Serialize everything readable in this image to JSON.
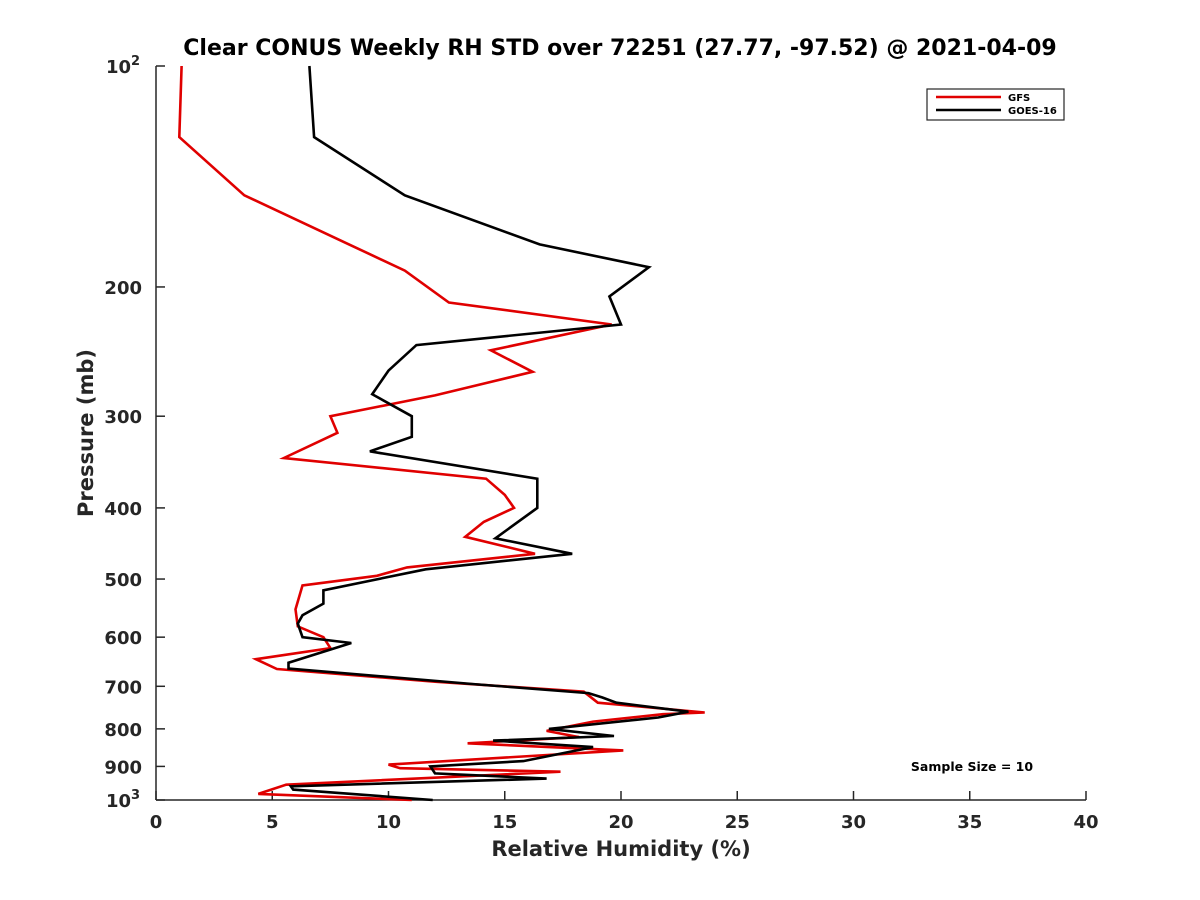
{
  "chart_data": {
    "type": "line",
    "title": "Clear CONUS Weekly RH STD over 72251 (27.77, -97.52) @ 2021-04-09",
    "xlabel": "Relative Humidity (%)",
    "ylabel": "Pressure (mb)",
    "xlim": [
      0,
      40
    ],
    "ylim": [
      100,
      1000
    ],
    "yscale": "log",
    "y_reversed": true,
    "x_ticks": [
      "0",
      "5",
      "10",
      "15",
      "20",
      "25",
      "30",
      "35",
      "40"
    ],
    "y_ticks": [
      {
        "value": 100,
        "label": "10",
        "sup": "2"
      },
      {
        "value": 200,
        "label": "200",
        "sup": ""
      },
      {
        "value": 300,
        "label": "300",
        "sup": ""
      },
      {
        "value": 400,
        "label": "400",
        "sup": ""
      },
      {
        "value": 500,
        "label": "500",
        "sup": ""
      },
      {
        "value": 600,
        "label": "600",
        "sup": ""
      },
      {
        "value": 700,
        "label": "700",
        "sup": ""
      },
      {
        "value": 800,
        "label": "800",
        "sup": ""
      },
      {
        "value": 900,
        "label": "900",
        "sup": ""
      },
      {
        "value": 1000,
        "label": "10",
        "sup": "3"
      }
    ],
    "grid": false,
    "legend_position": "top-right",
    "annotation": "Sample Size = 10",
    "series": [
      {
        "name": "GFS",
        "color": "#e00000",
        "points": [
          [
            1.1,
            100
          ],
          [
            1.0,
            125
          ],
          [
            3.8,
            150
          ],
          [
            8.3,
            175
          ],
          [
            10.7,
            190
          ],
          [
            12.6,
            210
          ],
          [
            19.6,
            225
          ],
          [
            14.4,
            244
          ],
          [
            16.2,
            261
          ],
          [
            12.0,
            281
          ],
          [
            7.5,
            300
          ],
          [
            7.8,
            316
          ],
          [
            5.5,
            342
          ],
          [
            14.2,
            365
          ],
          [
            15.0,
            384
          ],
          [
            15.4,
            400
          ],
          [
            14.1,
            418
          ],
          [
            13.3,
            438
          ],
          [
            16.3,
            462
          ],
          [
            10.8,
            482
          ],
          [
            9.5,
            495
          ],
          [
            6.3,
            510
          ],
          [
            6.0,
            550
          ],
          [
            6.1,
            580
          ],
          [
            7.2,
            600
          ],
          [
            7.5,
            621
          ],
          [
            4.3,
            643
          ],
          [
            5.2,
            663
          ],
          [
            12.0,
            690
          ],
          [
            18.4,
            712
          ],
          [
            19.0,
            737
          ],
          [
            23.6,
            760
          ],
          [
            21.8,
            764
          ],
          [
            18.8,
            782
          ],
          [
            16.8,
            805
          ],
          [
            18.2,
            821
          ],
          [
            13.4,
            837
          ],
          [
            20.1,
            856
          ],
          [
            10.0,
            895
          ],
          [
            10.5,
            905
          ],
          [
            17.4,
            915
          ],
          [
            5.6,
            953
          ],
          [
            4.4,
            981
          ],
          [
            11.0,
            1000
          ]
        ]
      },
      {
        "name": "GOES-16",
        "color": "#000000",
        "points": [
          [
            6.6,
            100
          ],
          [
            6.8,
            125
          ],
          [
            10.7,
            150
          ],
          [
            16.5,
            175
          ],
          [
            21.2,
            188
          ],
          [
            19.5,
            206
          ],
          [
            20.0,
            225
          ],
          [
            11.2,
            240
          ],
          [
            10.0,
            260
          ],
          [
            9.3,
            280
          ],
          [
            11.0,
            300
          ],
          [
            11.0,
            320
          ],
          [
            9.2,
            335
          ],
          [
            16.4,
            365
          ],
          [
            16.4,
            400
          ],
          [
            14.6,
            440
          ],
          [
            17.9,
            462
          ],
          [
            11.6,
            485
          ],
          [
            7.2,
            518
          ],
          [
            7.2,
            540
          ],
          [
            6.3,
            560
          ],
          [
            6.1,
            575
          ],
          [
            6.3,
            600
          ],
          [
            8.4,
            611
          ],
          [
            5.7,
            650
          ],
          [
            5.7,
            662
          ],
          [
            13.6,
            695
          ],
          [
            18.6,
            715
          ],
          [
            19.2,
            725
          ],
          [
            19.8,
            737
          ],
          [
            22.9,
            758
          ],
          [
            21.6,
            772
          ],
          [
            16.9,
            800
          ],
          [
            19.7,
            818
          ],
          [
            14.5,
            830
          ],
          [
            18.8,
            847
          ],
          [
            15.8,
            885
          ],
          [
            11.8,
            900
          ],
          [
            12.0,
            920
          ],
          [
            16.8,
            935
          ],
          [
            5.8,
            958
          ],
          [
            5.9,
            968
          ],
          [
            11.9,
            1000
          ]
        ]
      }
    ]
  }
}
